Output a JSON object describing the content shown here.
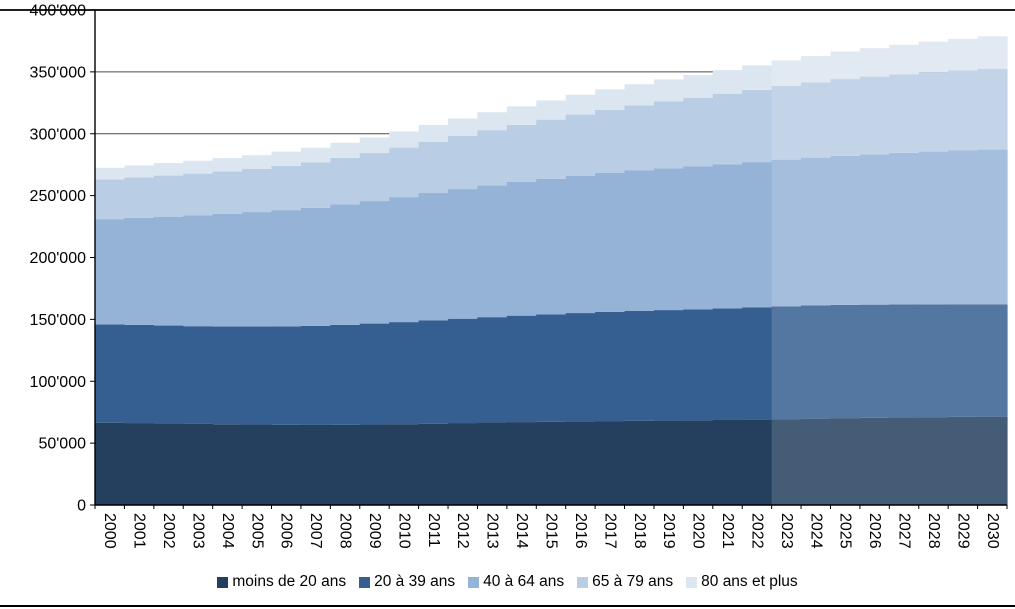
{
  "chart_data": {
    "type": "area",
    "stacked": true,
    "title": "",
    "xlabel": "",
    "ylabel": "",
    "ylim": [
      0,
      400000
    ],
    "ytick_step": 50000,
    "ytick_labels": [
      "0",
      "50'000",
      "100'000",
      "150'000",
      "200'000",
      "250'000",
      "300'000",
      "350'000",
      "400'000"
    ],
    "grid": true,
    "legend_position": "bottom",
    "projection_start_year": 2023,
    "x": [
      2000,
      2001,
      2002,
      2003,
      2004,
      2005,
      2006,
      2007,
      2008,
      2009,
      2010,
      2011,
      2012,
      2013,
      2014,
      2015,
      2016,
      2017,
      2018,
      2019,
      2020,
      2021,
      2022,
      2023,
      2024,
      2025,
      2026,
      2027,
      2028,
      2029,
      2030
    ],
    "series": [
      {
        "key": "moins-de-20-ans",
        "name": "moins de 20 ans",
        "color": "#24405E",
        "projection_color": "#455C76",
        "values": [
          66500,
          66200,
          65800,
          65500,
          65200,
          65000,
          64800,
          64700,
          64800,
          65000,
          65300,
          65700,
          66200,
          66600,
          67000,
          67300,
          67600,
          67800,
          68000,
          68200,
          68400,
          68700,
          69000,
          69400,
          69800,
          70200,
          70500,
          70800,
          71000,
          71200,
          71400
        ]
      },
      {
        "key": "20-a-39-ans",
        "name": "20 à 39 ans",
        "color": "#365F91",
        "projection_color": "#5477A1",
        "values": [
          79500,
          79300,
          79200,
          79000,
          79000,
          79200,
          79500,
          80000,
          80800,
          81600,
          82500,
          83400,
          84300,
          85200,
          86000,
          86800,
          87500,
          88200,
          88800,
          89300,
          89700,
          90200,
          90600,
          91200,
          91400,
          91500,
          91400,
          91300,
          91100,
          91000,
          90800
        ]
      },
      {
        "key": "40-a-64-ans",
        "name": "40 à 64 ans",
        "color": "#95B3D7",
        "projection_color": "#A5BEDD",
        "values": [
          85000,
          86500,
          88000,
          89500,
          91000,
          92500,
          94000,
          95500,
          97200,
          99000,
          101000,
          103000,
          104800,
          106500,
          108000,
          109500,
          111000,
          112300,
          113500,
          114600,
          115500,
          116500,
          117500,
          118500,
          119500,
          120500,
          121500,
          122500,
          123500,
          124300,
          125000
        ]
      },
      {
        "key": "65-a-79-ans",
        "name": "65 à 79 ans",
        "color": "#B9CDE5",
        "projection_color": "#C3D4E9",
        "values": [
          32000,
          32600,
          33200,
          33800,
          34400,
          35000,
          35800,
          36700,
          37700,
          38800,
          40000,
          41500,
          43000,
          44600,
          46200,
          47800,
          49400,
          51000,
          52500,
          54000,
          55500,
          57000,
          58400,
          59600,
          60800,
          62000,
          62800,
          63500,
          64200,
          64800,
          65400
        ]
      },
      {
        "key": "80-ans-et-plus",
        "name": "80 ans et plus",
        "color": "#DCE6F1",
        "projection_color": "#E1EAF3",
        "values": [
          9500,
          9800,
          10100,
          10400,
          10700,
          11000,
          11400,
          11800,
          12200,
          12600,
          13000,
          13500,
          14000,
          14500,
          15000,
          15500,
          16000,
          16600,
          17200,
          17800,
          18400,
          19000,
          19800,
          20600,
          21400,
          22200,
          23000,
          23800,
          24600,
          25400,
          26200
        ]
      }
    ]
  }
}
